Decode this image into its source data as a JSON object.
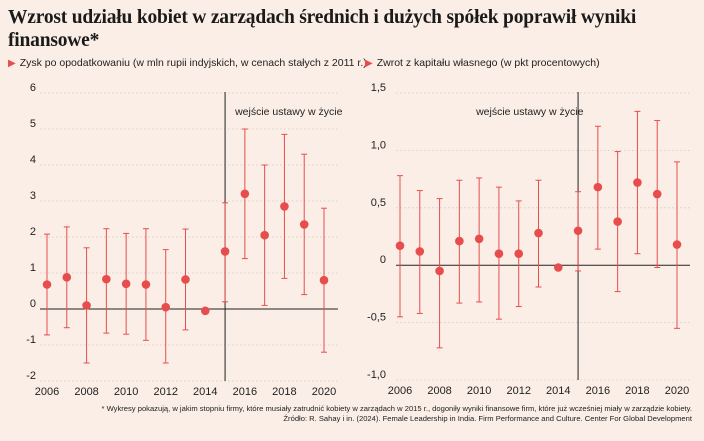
{
  "title": "Wzrost udziału kobiet w zarządach średnich i dużych spółek poprawił wyniki finansowe*",
  "colors": {
    "accent": "#e84d4d",
    "background": "#fbeee6",
    "grid": "#cfc7c2"
  },
  "chart_data": [
    {
      "type": "scatter",
      "title": "Zysk po opodatkowaniu (w mln rupii indyjskich, w cenach stałych z 2011 r.)",
      "annotation": "wejście ustawy w życie",
      "annotation_x": 2015,
      "ylim": [
        -2,
        6
      ],
      "yticks": [
        -2,
        -1,
        0,
        1,
        2,
        3,
        4,
        5,
        6
      ],
      "ytick_labels": [
        "-2",
        "-1",
        "0",
        "1",
        "2",
        "3",
        "4",
        "5",
        "6"
      ],
      "xticks": [
        2006,
        2008,
        2010,
        2012,
        2014,
        2016,
        2018,
        2020
      ],
      "grid": "horizontal dashed",
      "points": [
        {
          "x": 2006,
          "y": 0.68,
          "lo": -0.72,
          "hi": 2.08
        },
        {
          "x": 2007,
          "y": 0.88,
          "lo": -0.52,
          "hi": 2.28
        },
        {
          "x": 2008,
          "y": 0.1,
          "lo": -1.5,
          "hi": 1.7
        },
        {
          "x": 2009,
          "y": 0.83,
          "lo": -0.67,
          "hi": 2.23
        },
        {
          "x": 2010,
          "y": 0.7,
          "lo": -0.7,
          "hi": 2.1
        },
        {
          "x": 2011,
          "y": 0.68,
          "lo": -0.87,
          "hi": 2.23
        },
        {
          "x": 2012,
          "y": 0.05,
          "lo": -1.5,
          "hi": 1.65
        },
        {
          "x": 2013,
          "y": 0.82,
          "lo": -0.58,
          "hi": 2.22
        },
        {
          "x": 2014,
          "y": -0.05,
          "lo": -0.05,
          "hi": -0.05
        },
        {
          "x": 2015,
          "y": 1.6,
          "lo": 0.2,
          "hi": 2.95
        },
        {
          "x": 2016,
          "y": 3.2,
          "lo": 1.4,
          "hi": 5.0
        },
        {
          "x": 2017,
          "y": 2.05,
          "lo": 0.1,
          "hi": 4.0
        },
        {
          "x": 2018,
          "y": 2.85,
          "lo": 0.85,
          "hi": 4.85
        },
        {
          "x": 2019,
          "y": 2.35,
          "lo": 0.4,
          "hi": 4.3
        },
        {
          "x": 2020,
          "y": 0.8,
          "lo": -1.2,
          "hi": 2.8
        }
      ]
    },
    {
      "type": "scatter",
      "title": "Zwrot z kapitału własnego (w pkt procentowych)",
      "annotation": "wejście ustawy w życie",
      "annotation_x": 2015,
      "ylim": [
        -1.0,
        1.5
      ],
      "yticks": [
        -1.0,
        -0.5,
        0,
        0.5,
        1.0,
        1.5
      ],
      "ytick_labels": [
        "-1,0",
        "-0,5",
        "0",
        "0,5",
        "1,0",
        "1,5"
      ],
      "xticks": [
        2006,
        2008,
        2010,
        2012,
        2014,
        2016,
        2018,
        2020
      ],
      "grid": "horizontal dashed",
      "points": [
        {
          "x": 2006,
          "y": 0.17,
          "lo": -0.45,
          "hi": 0.78
        },
        {
          "x": 2007,
          "y": 0.12,
          "lo": -0.42,
          "hi": 0.65
        },
        {
          "x": 2008,
          "y": -0.05,
          "lo": -0.72,
          "hi": 0.58
        },
        {
          "x": 2009,
          "y": 0.21,
          "lo": -0.33,
          "hi": 0.74
        },
        {
          "x": 2010,
          "y": 0.23,
          "lo": -0.32,
          "hi": 0.76
        },
        {
          "x": 2011,
          "y": 0.1,
          "lo": -0.47,
          "hi": 0.68
        },
        {
          "x": 2012,
          "y": 0.1,
          "lo": -0.36,
          "hi": 0.56
        },
        {
          "x": 2013,
          "y": 0.28,
          "lo": -0.19,
          "hi": 0.74
        },
        {
          "x": 2014,
          "y": -0.02,
          "lo": -0.02,
          "hi": -0.02
        },
        {
          "x": 2015,
          "y": 0.3,
          "lo": -0.05,
          "hi": 0.64
        },
        {
          "x": 2016,
          "y": 0.68,
          "lo": 0.14,
          "hi": 1.21
        },
        {
          "x": 2017,
          "y": 0.38,
          "lo": -0.23,
          "hi": 0.99
        },
        {
          "x": 2018,
          "y": 0.72,
          "lo": 0.1,
          "hi": 1.34
        },
        {
          "x": 2019,
          "y": 0.62,
          "lo": -0.02,
          "hi": 1.26
        },
        {
          "x": 2020,
          "y": 0.18,
          "lo": -0.55,
          "hi": 0.9
        }
      ]
    }
  ],
  "footnote": {
    "line1": "* Wykresy pokazują, w jakim stopniu firmy, które musiały zatrudnić kobiety w zarządach w 2015 r., dogoniły wyniki finansowe firm, które już wcześniej miały w zarządzie kobiety.",
    "line2": "Źródło: R. Sahay i in. (2024). Female Leadership in India. Firm Performance and Culture. Center For Global Development"
  }
}
